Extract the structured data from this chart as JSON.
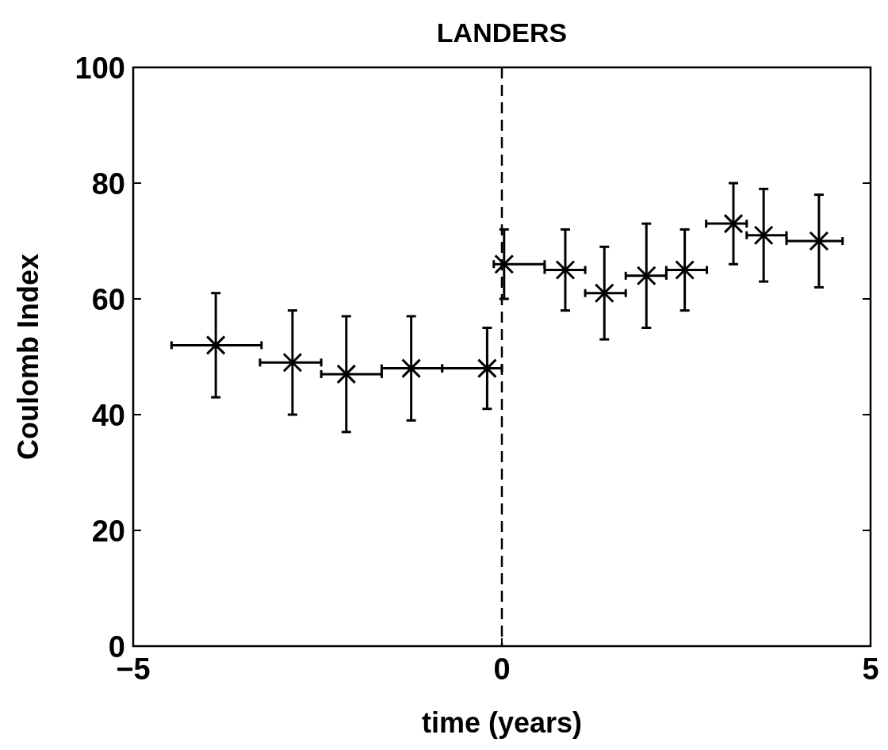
{
  "chart_data": {
    "type": "scatter",
    "title": "LANDERS",
    "xlabel": "time (years)",
    "ylabel": "Coulomb Index",
    "x": [
      -3.88,
      -2.84,
      -2.11,
      -1.23,
      -0.2,
      0.03,
      0.86,
      1.39,
      1.96,
      2.48,
      3.14,
      3.55,
      4.3
    ],
    "values": [
      52,
      49,
      47,
      48,
      48,
      66,
      65,
      61,
      64,
      65,
      73,
      71,
      70
    ],
    "errors": [
      [
        43,
        61
      ],
      [
        40,
        58
      ],
      [
        37,
        57
      ],
      [
        39,
        57
      ],
      [
        41,
        55
      ],
      [
        60,
        72
      ],
      [
        58,
        72
      ],
      [
        53,
        69
      ],
      [
        55,
        73
      ],
      [
        58,
        72
      ],
      [
        66,
        80
      ],
      [
        63,
        79
      ],
      [
        62,
        78
      ]
    ],
    "xerrors": [
      [
        -4.48,
        -3.26
      ],
      [
        -3.28,
        -2.45
      ],
      [
        -2.45,
        -1.63
      ],
      [
        -1.63,
        -0.81
      ],
      [
        -0.81,
        0
      ],
      [
        -0.11,
        0.58
      ],
      [
        0.58,
        1.13
      ],
      [
        1.13,
        1.68
      ],
      [
        1.68,
        2.23
      ],
      [
        2.23,
        2.78
      ],
      [
        2.77,
        3.32
      ],
      [
        3.32,
        3.86
      ],
      [
        3.86,
        4.62
      ]
    ],
    "color": "#000000",
    "marker": "cross",
    "xlim": [
      -5,
      5
    ],
    "xticks": [
      {
        "value": -5,
        "label": "−5"
      },
      0,
      5
    ],
    "ylim": [
      0,
      100
    ],
    "yticks": [
      0,
      20,
      40,
      60,
      80,
      100
    ],
    "ref_lines": [
      {
        "axis": "x",
        "value": 0,
        "line_style": "dashed",
        "color": "#000000"
      }
    ],
    "grid": false
  }
}
